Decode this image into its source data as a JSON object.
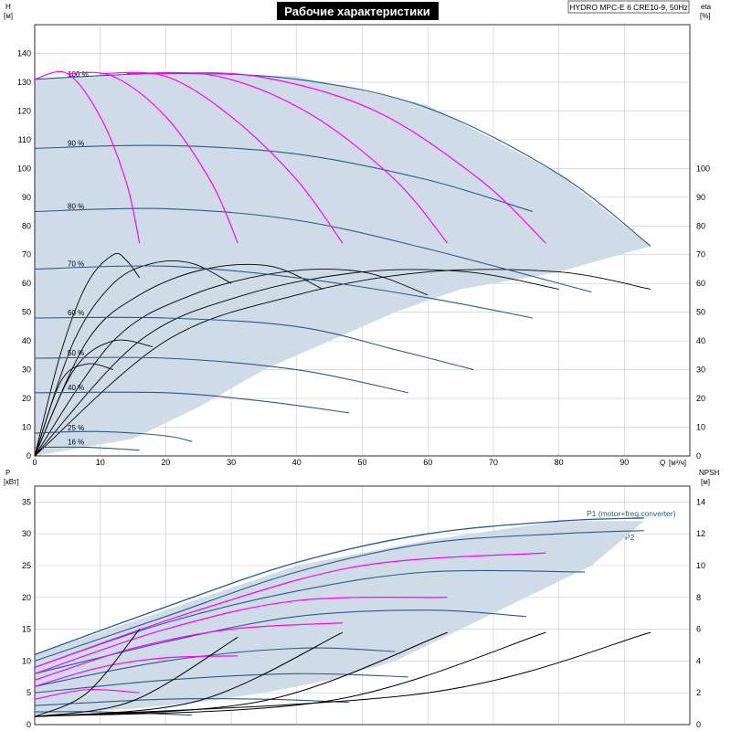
{
  "title": "Рабочие характеристики",
  "model": "HYDRO MPC-E 6 CRE10-9, 50Hz",
  "colors": {
    "envelope": "#cfdce8",
    "envelope_light": "#eef5fc",
    "speed_curve": "#2a5a8a",
    "efficiency_curve": "#000000",
    "pump_count_curve": "#ff00ff",
    "p1_p2": "#2a5a8a"
  },
  "chart_data": [
    {
      "type": "line",
      "name": "head",
      "xlabel": "Q",
      "xunit": "[м³/ч]",
      "ylabel": "H",
      "yunit": "[м]",
      "y2label": "eta",
      "y2unit": "[%]",
      "xlim": [
        0,
        100
      ],
      "ylim": [
        0,
        150
      ],
      "y2lim": [
        0,
        150
      ],
      "xticks": [
        0,
        10,
        20,
        30,
        40,
        50,
        60,
        70,
        80,
        90
      ],
      "yticks": [
        0,
        10,
        20,
        30,
        40,
        50,
        60,
        70,
        80,
        90,
        100,
        110,
        120,
        130,
        140
      ],
      "y2ticks": [
        0,
        10,
        20,
        30,
        40,
        50,
        60,
        70,
        80,
        90,
        100
      ],
      "grid": true,
      "envelope_light": [
        [
          0,
          0
        ],
        [
          0,
          131
        ],
        [
          7,
          133
        ],
        [
          2,
          131
        ],
        [
          0,
          131
        ]
      ],
      "envelope": [
        [
          0,
          0
        ],
        [
          0,
          131
        ],
        [
          20,
          133
        ],
        [
          40,
          132
        ],
        [
          60,
          122
        ],
        [
          80,
          98
        ],
        [
          94,
          73
        ],
        [
          80,
          64
        ],
        [
          65,
          58
        ],
        [
          55,
          50
        ],
        [
          45,
          40
        ],
        [
          35,
          30
        ],
        [
          25,
          17
        ],
        [
          15,
          6
        ],
        [
          5,
          2
        ],
        [
          0,
          0
        ]
      ],
      "speed_curves": [
        {
          "label": "100 %",
          "points": [
            [
              0,
              131
            ],
            [
              20,
              133
            ],
            [
              40,
              131
            ],
            [
              60,
              121
            ],
            [
              80,
              98
            ],
            [
              94,
              73
            ]
          ]
        },
        {
          "label": "90 %",
          "points": [
            [
              0,
              107
            ],
            [
              20,
              108
            ],
            [
              40,
              105
            ],
            [
              60,
              96
            ],
            [
              76,
              85
            ]
          ]
        },
        {
          "label": "80 %",
          "points": [
            [
              0,
              85
            ],
            [
              20,
              86
            ],
            [
              40,
              82
            ],
            [
              60,
              72
            ],
            [
              85,
              57
            ]
          ]
        },
        {
          "label": "70 %",
          "points": [
            [
              0,
              65
            ],
            [
              20,
              66
            ],
            [
              40,
              62
            ],
            [
              60,
              55
            ],
            [
              76,
              48
            ]
          ]
        },
        {
          "label": "60 %",
          "points": [
            [
              0,
              48
            ],
            [
              20,
              48
            ],
            [
              40,
              45
            ],
            [
              55,
              37
            ],
            [
              67,
              30
            ]
          ]
        },
        {
          "label": "50 %",
          "points": [
            [
              0,
              34
            ],
            [
              20,
              34
            ],
            [
              40,
              30
            ],
            [
              57,
              22
            ]
          ]
        },
        {
          "label": "40 %",
          "points": [
            [
              0,
              22
            ],
            [
              20,
              22
            ],
            [
              35,
              19
            ],
            [
              48,
              15
            ]
          ]
        },
        {
          "label": "25 %",
          "points": [
            [
              0,
              8
            ],
            [
              10,
              8.5
            ],
            [
              20,
              7
            ],
            [
              24,
              5
            ]
          ]
        },
        {
          "label": "16 %",
          "points": [
            [
              0,
              3
            ],
            [
              8,
              3
            ],
            [
              16,
              2
            ]
          ]
        }
      ],
      "pump_count_curves": [
        {
          "points": [
            [
              0,
              131
            ],
            [
              5,
              133
            ],
            [
              10,
              118
            ],
            [
              14,
              95
            ],
            [
              16,
              74
            ]
          ]
        },
        {
          "points": [
            [
              5,
              133
            ],
            [
              12,
              132
            ],
            [
              20,
              118
            ],
            [
              27,
              95
            ],
            [
              31,
              74
            ]
          ]
        },
        {
          "points": [
            [
              10,
              133
            ],
            [
              20,
              132
            ],
            [
              30,
              118
            ],
            [
              40,
              96
            ],
            [
              47,
              74
            ]
          ]
        },
        {
          "points": [
            [
              14,
              133
            ],
            [
              28,
              132
            ],
            [
              42,
              119
            ],
            [
              55,
              96
            ],
            [
              63,
              74
            ]
          ]
        },
        {
          "points": [
            [
              18,
              133
            ],
            [
              34,
              132
            ],
            [
              52,
              120
            ],
            [
              68,
              96
            ],
            [
              78,
              74
            ]
          ]
        }
      ],
      "efficiency_curves": [
        {
          "points": [
            [
              0,
              0
            ],
            [
              4,
              36
            ],
            [
              8,
              60
            ],
            [
              12,
              70
            ],
            [
              14,
              68
            ],
            [
              16,
              62
            ]
          ]
        },
        {
          "points": [
            [
              0,
              0
            ],
            [
              6,
              40
            ],
            [
              12,
              60
            ],
            [
              18,
              67
            ],
            [
              24,
              67
            ],
            [
              30,
              60
            ]
          ]
        },
        {
          "points": [
            [
              0,
              0
            ],
            [
              8,
              40
            ],
            [
              16,
              56
            ],
            [
              26,
              65
            ],
            [
              36,
              66
            ],
            [
              44,
              58
            ]
          ]
        },
        {
          "points": [
            [
              0,
              0
            ],
            [
              12,
              40
            ],
            [
              24,
              56
            ],
            [
              38,
              64
            ],
            [
              50,
              64
            ],
            [
              60,
              56
            ]
          ]
        },
        {
          "points": [
            [
              0,
              0
            ],
            [
              16,
              40
            ],
            [
              32,
              56
            ],
            [
              50,
              64
            ],
            [
              66,
              64
            ],
            [
              80,
              58
            ]
          ]
        },
        {
          "points": [
            [
              0,
              0
            ],
            [
              20,
              40
            ],
            [
              40,
              56
            ],
            [
              60,
              64
            ],
            [
              80,
              64
            ],
            [
              94,
              58
            ]
          ]
        },
        {
          "points": [
            [
              0,
              0
            ],
            [
              4,
              26
            ],
            [
              8,
              32
            ],
            [
              12,
              30
            ]
          ]
        },
        {
          "points": [
            [
              0,
              0
            ],
            [
              6,
              30
            ],
            [
              12,
              40
            ],
            [
              18,
              38
            ]
          ]
        }
      ]
    },
    {
      "type": "line",
      "name": "power",
      "xlabel": "Q",
      "ylabel": "P",
      "yunit": "[кВт]",
      "y2label": "NPSH",
      "y2unit": "[м]",
      "xlim": [
        0,
        100
      ],
      "ylim": [
        0,
        37.5
      ],
      "y2lim": [
        0,
        15
      ],
      "yticks": [
        0,
        5,
        10,
        15,
        20,
        25,
        30,
        35
      ],
      "y2ticks": [
        0,
        2,
        4,
        6,
        8,
        10,
        12,
        14
      ],
      "grid": true,
      "series_labels": [
        "P1 (motor+freq.converter)",
        "P2"
      ],
      "envelope": [
        [
          0,
          11
        ],
        [
          20,
          18
        ],
        [
          40,
          25
        ],
        [
          60,
          29
        ],
        [
          80,
          32
        ],
        [
          93,
          32
        ],
        [
          85,
          25
        ],
        [
          75,
          20
        ],
        [
          65,
          15
        ],
        [
          55,
          10
        ],
        [
          45,
          7
        ],
        [
          35,
          5
        ],
        [
          25,
          3.5
        ],
        [
          15,
          2.5
        ],
        [
          5,
          2
        ],
        [
          0,
          1.5
        ]
      ],
      "p1": [
        [
          0,
          11
        ],
        [
          20,
          18.5
        ],
        [
          40,
          25.5
        ],
        [
          60,
          30
        ],
        [
          80,
          32
        ],
        [
          93,
          32.5
        ]
      ],
      "p2": [
        [
          0,
          10
        ],
        [
          20,
          17
        ],
        [
          40,
          24
        ],
        [
          60,
          28.5
        ],
        [
          80,
          30
        ],
        [
          93,
          30.5
        ]
      ],
      "speed_curves": [
        {
          "points": [
            [
              0,
              9
            ],
            [
              20,
              16
            ],
            [
              40,
              21
            ],
            [
              60,
              24
            ],
            [
              84,
              24
            ]
          ]
        },
        {
          "points": [
            [
              0,
              8
            ],
            [
              20,
              13
            ],
            [
              40,
              17
            ],
            [
              60,
              18
            ],
            [
              75,
              17
            ]
          ]
        },
        {
          "points": [
            [
              0,
              6
            ],
            [
              20,
              10
            ],
            [
              40,
              12
            ],
            [
              55,
              11.5
            ]
          ]
        },
        {
          "points": [
            [
              0,
              5
            ],
            [
              20,
              7
            ],
            [
              40,
              8
            ],
            [
              57,
              7.5
            ]
          ]
        },
        {
          "points": [
            [
              0,
              3
            ],
            [
              20,
              4
            ],
            [
              35,
              4
            ],
            [
              48,
              3.5
            ]
          ]
        },
        {
          "points": [
            [
              0,
              2
            ],
            [
              10,
              2
            ],
            [
              24,
              1.5
            ]
          ]
        }
      ],
      "pump_count_curves": [
        {
          "points": [
            [
              0,
              4
            ],
            [
              8,
              5.5
            ],
            [
              16,
              5
            ]
          ]
        },
        {
          "points": [
            [
              0,
              6
            ],
            [
              10,
              9
            ],
            [
              20,
              10.5
            ],
            [
              31,
              10.8
            ]
          ]
        },
        {
          "points": [
            [
              0,
              7
            ],
            [
              15,
              12
            ],
            [
              30,
              15
            ],
            [
              47,
              16
            ]
          ]
        },
        {
          "points": [
            [
              0,
              8
            ],
            [
              20,
              15
            ],
            [
              40,
              19.5
            ],
            [
              63,
              20
            ]
          ]
        },
        {
          "points": [
            [
              0,
              9
            ],
            [
              25,
              18
            ],
            [
              50,
              25
            ],
            [
              78,
              27
            ]
          ]
        }
      ],
      "npsh_curves": [
        {
          "points": [
            [
              0,
              0.5
            ],
            [
              8,
              2
            ],
            [
              16,
              6
            ]
          ]
        },
        {
          "points": [
            [
              0,
              0.5
            ],
            [
              15,
              1.5
            ],
            [
              31,
              5.5
            ]
          ]
        },
        {
          "points": [
            [
              0,
              0.5
            ],
            [
              25,
              1.5
            ],
            [
              47,
              5.8
            ]
          ]
        },
        {
          "points": [
            [
              0,
              0.5
            ],
            [
              35,
              1.5
            ],
            [
              63,
              5.8
            ]
          ]
        },
        {
          "points": [
            [
              0,
              0.5
            ],
            [
              45,
              1.5
            ],
            [
              78,
              5.8
            ]
          ]
        },
        {
          "points": [
            [
              0,
              0.5
            ],
            [
              60,
              2
            ],
            [
              94,
              5.8
            ]
          ]
        }
      ]
    }
  ]
}
